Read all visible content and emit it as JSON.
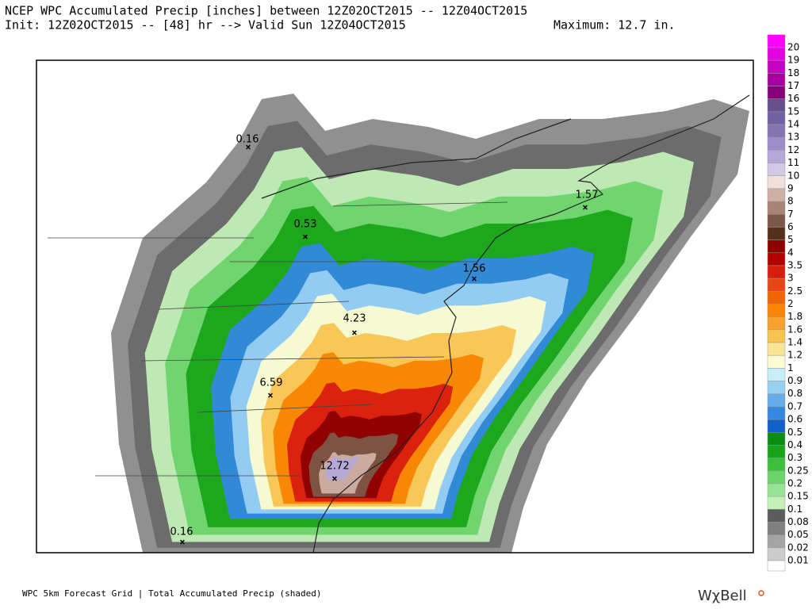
{
  "header": {
    "line1": "NCEP WPC Accumulated Precip [inches] between 12Z02OCT2015 -- 12Z04OCT2015",
    "line2": "Init: 12Z02OCT2015 -- [48] hr --> Valid Sun 12Z04OCT2015",
    "maximum": "Maximum:  12.7 in."
  },
  "map": {
    "labels": [
      "0.16",
      "0.53",
      "1.57",
      "1.56",
      "4.23",
      "6.59",
      "12.72",
      "0.16"
    ]
  },
  "legend": {
    "entries": [
      {
        "label": 20,
        "color": "#ff00ff"
      },
      {
        "label": 19,
        "color": "#e400e0"
      },
      {
        "label": 18,
        "color": "#c800c4"
      },
      {
        "label": 17,
        "color": "#a800a0"
      },
      {
        "label": 16,
        "color": "#880078"
      },
      {
        "label": 15,
        "color": "#64508c"
      },
      {
        "label": 14,
        "color": "#7060a4"
      },
      {
        "label": 13,
        "color": "#8474b4"
      },
      {
        "label": 12,
        "color": "#9c8cc8"
      },
      {
        "label": 11,
        "color": "#b4a8d8"
      },
      {
        "label": 10,
        "color": "#d0c8e4"
      },
      {
        "label": 9,
        "color": "#f0e0dc"
      },
      {
        "label": 8,
        "color": "#d0b0a4"
      },
      {
        "label": 7,
        "color": "#a88474"
      },
      {
        "label": 6,
        "color": "#7c5848"
      },
      {
        "label": 5,
        "color": "#54301c"
      },
      {
        "label": 4,
        "color": "#8c0000"
      },
      {
        "label": 3.5,
        "color": "#b40000"
      },
      {
        "label": 3,
        "color": "#d81c10"
      },
      {
        "label": 2.5,
        "color": "#e84414"
      },
      {
        "label": 2,
        "color": "#f06400"
      },
      {
        "label": 1.8,
        "color": "#f88400"
      },
      {
        "label": 1.6,
        "color": "#f8a030"
      },
      {
        "label": 1.4,
        "color": "#f8c450"
      },
      {
        "label": 1.2,
        "color": "#f8e494"
      },
      {
        "label": 1,
        "color": "#fcfcd0"
      },
      {
        "label": 0.9,
        "color": "#c8ecf8"
      },
      {
        "label": 0.8,
        "color": "#98d0f4"
      },
      {
        "label": 0.7,
        "color": "#64acec"
      },
      {
        "label": 0.6,
        "color": "#3488e0"
      },
      {
        "label": 0.5,
        "color": "#1060c8"
      },
      {
        "label": 0.4,
        "color": "#0c8c10"
      },
      {
        "label": 0.3,
        "color": "#18a418"
      },
      {
        "label": 0.25,
        "color": "#3cc03c"
      },
      {
        "label": 0.2,
        "color": "#6cd46c"
      },
      {
        "label": 0.15,
        "color": "#98e494"
      },
      {
        "label": 0.1,
        "color": "#c4f0b8"
      },
      {
        "label": 0.08,
        "color": "#5c5c5c"
      },
      {
        "label": 0.05,
        "color": "#808080"
      },
      {
        "label": 0.02,
        "color": "#a4a4a4"
      },
      {
        "label": 0.01,
        "color": "#cccccc"
      }
    ]
  },
  "footer": {
    "caption": "WPC 5km Forecast Grid | Total Accumulated Precip (shaded)",
    "logo": "WχBell"
  }
}
